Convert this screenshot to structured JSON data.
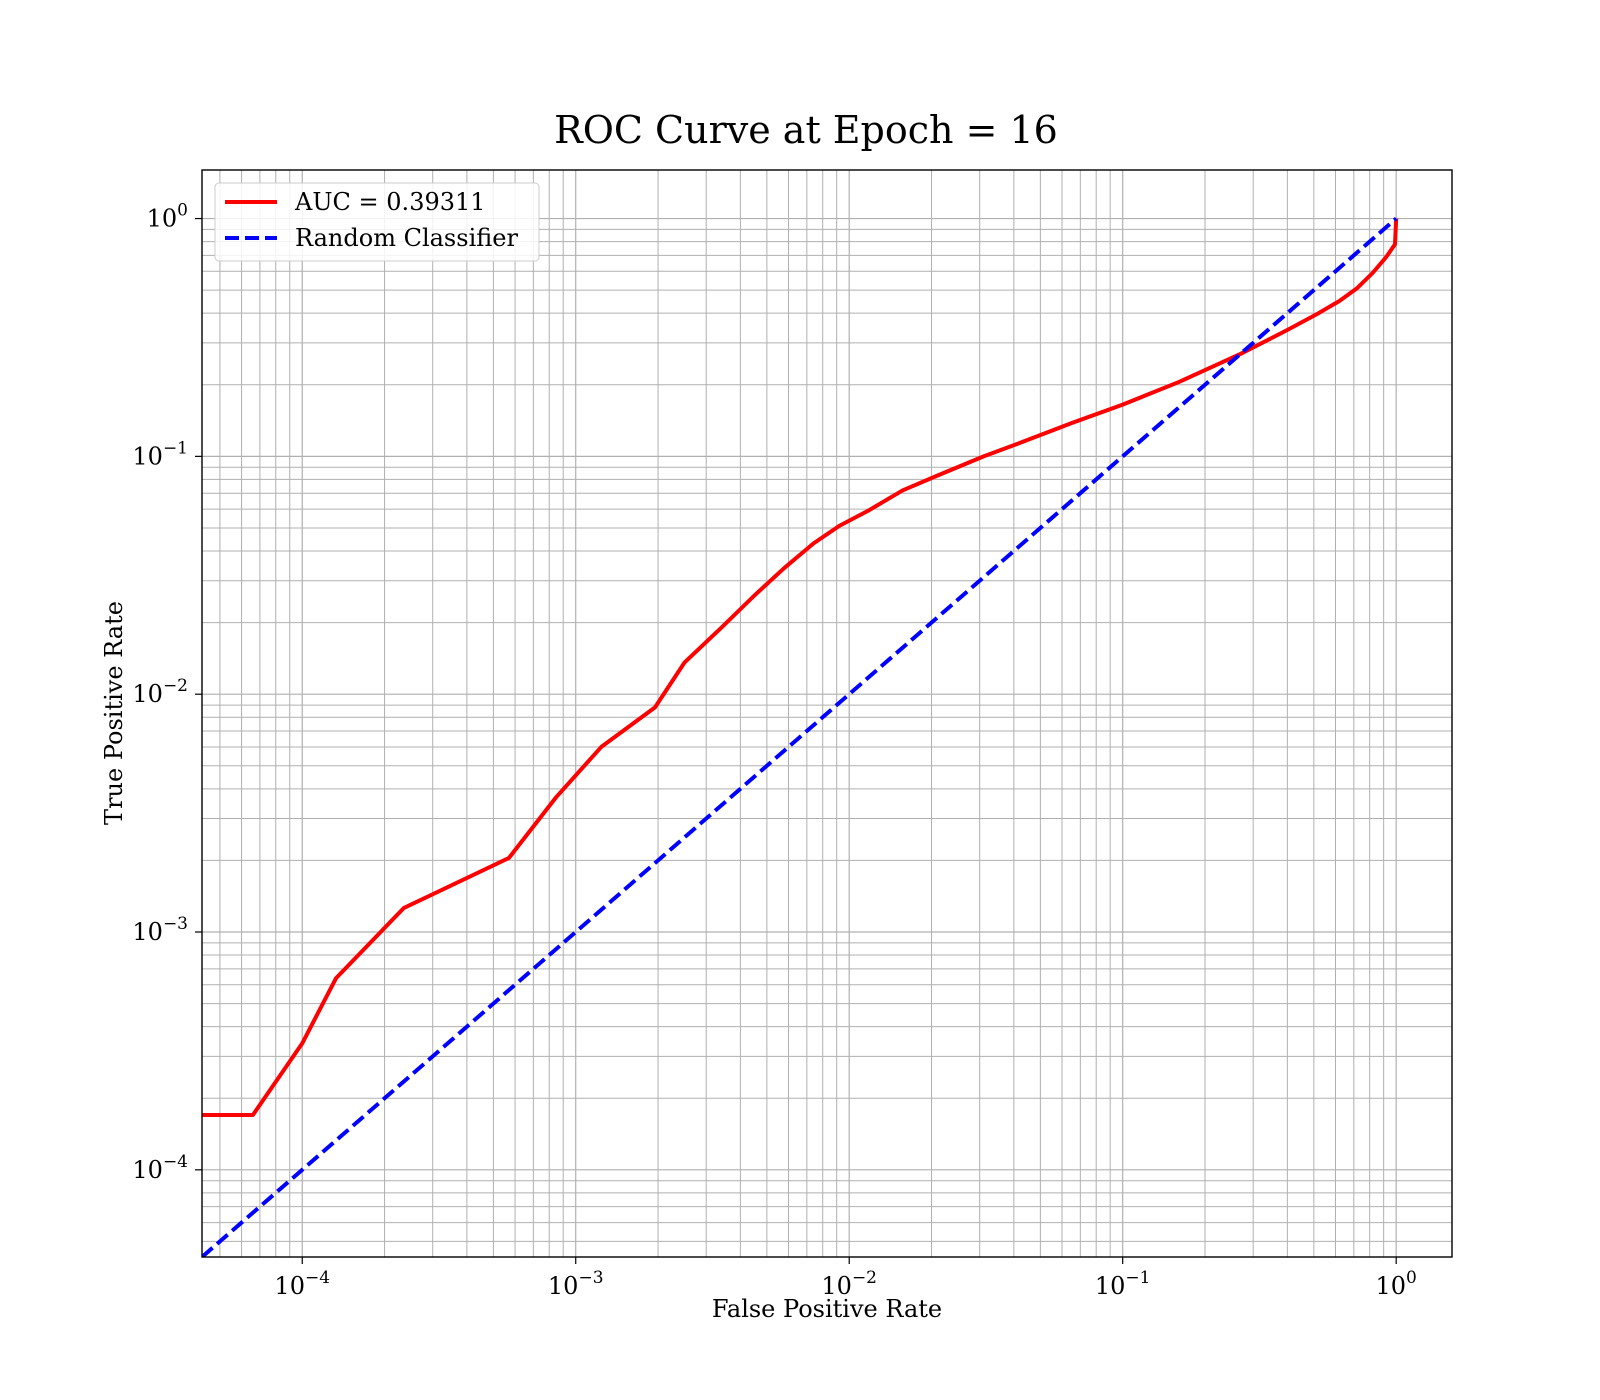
{
  "chart_data": {
    "type": "line",
    "title": "ROC Curve at Epoch = 16",
    "xlabel": "False Positive Rate",
    "ylabel": "True Positive Rate",
    "xscale": "log",
    "yscale": "log",
    "xlim": [
      4.3e-05,
      1.6
    ],
    "ylim": [
      4.3e-05,
      1.6
    ],
    "grid": "both-major-and-minor",
    "legend_position": "top-left",
    "x_ticks": [
      {
        "value": 0.0001,
        "base": "10",
        "exp": "−4"
      },
      {
        "value": 0.001,
        "base": "10",
        "exp": "−3"
      },
      {
        "value": 0.01,
        "base": "10",
        "exp": "−2"
      },
      {
        "value": 0.1,
        "base": "10",
        "exp": "−1"
      },
      {
        "value": 1,
        "base": "10",
        "exp": "0"
      }
    ],
    "y_ticks": [
      {
        "value": 0.0001,
        "base": "10",
        "exp": "−4"
      },
      {
        "value": 0.001,
        "base": "10",
        "exp": "−3"
      },
      {
        "value": 0.01,
        "base": "10",
        "exp": "−2"
      },
      {
        "value": 0.1,
        "base": "10",
        "exp": "−1"
      },
      {
        "value": 1,
        "base": "10",
        "exp": "0"
      }
    ],
    "series": [
      {
        "name": "AUC = 0.39311",
        "color": "#ff0000",
        "style": "solid",
        "x": [
          4e-05,
          6.6e-05,
          0.0001,
          0.000133,
          0.000235,
          0.00057,
          0.00085,
          0.00124,
          0.00195,
          0.0025,
          0.0034,
          0.0045,
          0.0058,
          0.0074,
          0.0092,
          0.0117,
          0.0157,
          0.021,
          0.031,
          0.043,
          0.065,
          0.1,
          0.16,
          0.27,
          0.4,
          0.52,
          0.62,
          0.72,
          0.82,
          0.92,
          0.99,
          1.0
        ],
        "y": [
          0.00017,
          0.00017,
          0.00034,
          0.00064,
          0.00126,
          0.00205,
          0.0037,
          0.006,
          0.0088,
          0.0136,
          0.019,
          0.026,
          0.034,
          0.043,
          0.051,
          0.059,
          0.072,
          0.083,
          0.1,
          0.115,
          0.138,
          0.165,
          0.205,
          0.27,
          0.34,
          0.4,
          0.45,
          0.51,
          0.59,
          0.69,
          0.78,
          1.0
        ]
      },
      {
        "name": "Random Classifier",
        "color": "#0000ff",
        "style": "dashed",
        "x": [
          4.3e-05,
          1.0
        ],
        "y": [
          4.3e-05,
          1.0
        ]
      }
    ]
  }
}
